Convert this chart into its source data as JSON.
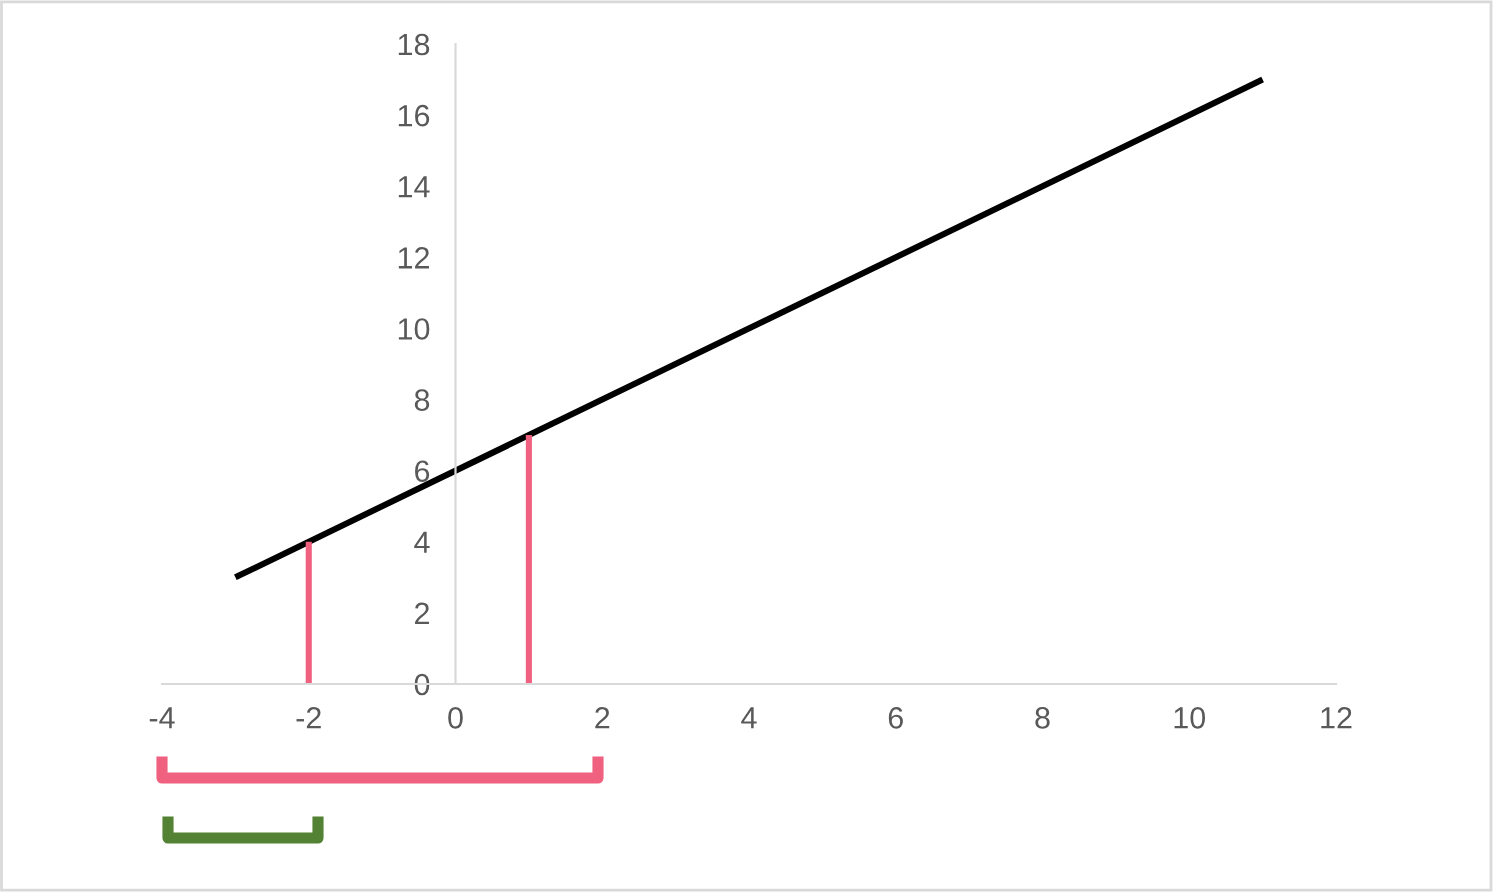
{
  "chart_data": {
    "type": "line",
    "series": [
      {
        "x": [
          -3,
          11
        ],
        "values": [
          3,
          17
        ],
        "color": "#000000"
      },
      {
        "x": [
          -2,
          -2
        ],
        "values": [
          0,
          4
        ],
        "color": "#f0607f"
      },
      {
        "x": [
          1,
          1
        ],
        "values": [
          0,
          7
        ],
        "color": "#f0607f"
      }
    ],
    "xlim": [
      -4,
      12
    ],
    "xticks": [
      -4,
      -2,
      0,
      2,
      4,
      6,
      8,
      10,
      12
    ],
    "ylim": [
      0,
      18
    ],
    "yticks": [
      0,
      2,
      4,
      6,
      8,
      10,
      12,
      14,
      16,
      18
    ],
    "grid": false,
    "marker": "none",
    "line_style": "solid"
  }
}
